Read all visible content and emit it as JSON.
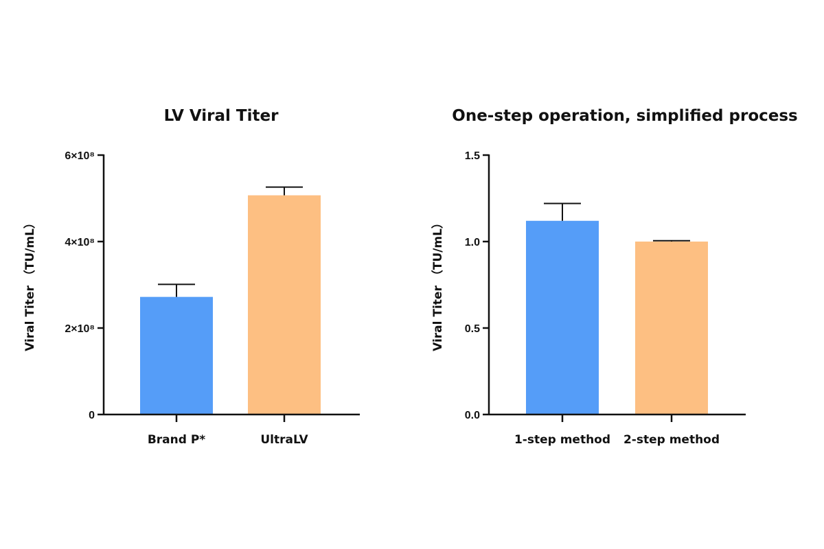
{
  "chart_data": [
    {
      "type": "bar",
      "title": "LV Viral Titer",
      "ylabel": "Viral Titer （TU/mL）",
      "categories": [
        "Brand P*",
        "UltraLV"
      ],
      "values": [
        272000000,
        507000000
      ],
      "errors": [
        29000000,
        19000000
      ],
      "ylim": [
        0,
        600000000
      ],
      "yticks": [
        0,
        200000000,
        400000000,
        600000000
      ],
      "ytick_labels": [
        "0",
        "2×10⁸",
        "4×10⁸",
        "6×10⁸"
      ],
      "colors": [
        "#559df8",
        "#fdbf82"
      ],
      "grid": false
    },
    {
      "type": "bar",
      "title": "One-step operation, simplified process",
      "ylabel": "Viral Titer （TU/mL）",
      "categories": [
        "1-step method",
        "2-step method"
      ],
      "values": [
        1.12,
        1.0
      ],
      "errors": [
        0.1,
        0.005
      ],
      "ylim": [
        0,
        1.5
      ],
      "yticks": [
        0,
        0.5,
        1.0,
        1.5
      ],
      "ytick_labels": [
        "0.0",
        "0.5",
        "1.0",
        "1.5"
      ],
      "colors": [
        "#559df8",
        "#fdbf82"
      ],
      "grid": false
    }
  ]
}
